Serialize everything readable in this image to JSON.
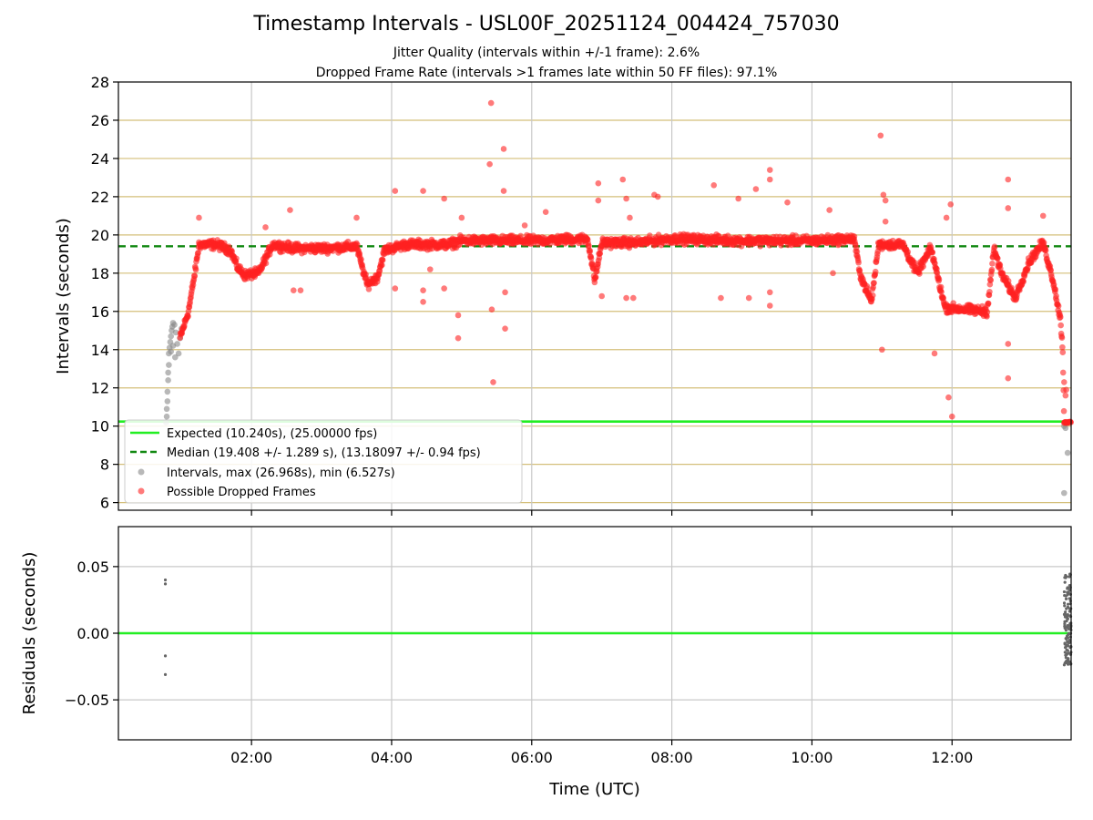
{
  "chart_data": [
    {
      "type": "scatter",
      "title": "Timestamp Intervals - USL00F_20251124_004424_757030",
      "subtitle": [
        "Jitter Quality (intervals within +/-1 frame): 2.6%",
        "Dropped Frame Rate (intervals >1 frames late within 50 FF files): 97.1%"
      ],
      "ylabel": "Intervals (seconds)",
      "xlabel": "",
      "xlim": [
        0.1,
        13.7
      ],
      "ylim": [
        5.6,
        28
      ],
      "yticks": [
        6,
        8,
        10,
        12,
        14,
        16,
        18,
        20,
        22,
        24,
        26,
        28
      ],
      "xticks": [
        2,
        4,
        6,
        8,
        10,
        12
      ],
      "horizontal_grid_color": "#d4bf7a",
      "vertical_grid_color": "#c8c8c8",
      "legend": {
        "location": "lower-left",
        "entries": [
          {
            "label": "Expected (10.240s), (25.00000 fps)",
            "kind": "line",
            "color": "#22ee22"
          },
          {
            "label": "Median (19.408 +/- 1.289 s), (13.18097 +/- 0.94 fps)",
            "kind": "dashed",
            "color": "#118811"
          },
          {
            "label": "Intervals, max (26.968s), min (6.527s)",
            "kind": "marker",
            "color": "#888888"
          },
          {
            "label": "Possible Dropped Frames",
            "kind": "marker",
            "color": "#ff2222"
          }
        ]
      },
      "expected_line": {
        "y": 10.24,
        "color": "#22ee22"
      },
      "median_line": {
        "y": 19.408,
        "color": "#118811"
      },
      "series": [
        {
          "name": "Intervals, max (26.968s), min (6.527s)",
          "color": "#888888",
          "points": [
            [
              0.78,
              10.2
            ],
            [
              0.79,
              10.5
            ],
            [
              0.79,
              10.9
            ],
            [
              0.8,
              11.3
            ],
            [
              0.8,
              11.8
            ],
            [
              0.81,
              12.4
            ],
            [
              0.81,
              12.8
            ],
            [
              0.82,
              13.2
            ],
            [
              0.82,
              13.8
            ],
            [
              0.83,
              14.1
            ],
            [
              0.84,
              14.4
            ],
            [
              0.85,
              14.7
            ],
            [
              0.86,
              15.0
            ],
            [
              0.87,
              15.2
            ],
            [
              0.88,
              15.4
            ],
            [
              0.9,
              15.3
            ],
            [
              0.92,
              14.9
            ],
            [
              0.94,
              14.3
            ],
            [
              0.96,
              13.8
            ],
            [
              0.98,
              14.6
            ],
            [
              1.0,
              15.1
            ],
            [
              0.85,
              13.9
            ],
            [
              0.88,
              14.2
            ],
            [
              0.91,
              13.6
            ],
            [
              13.6,
              10.0
            ],
            [
              13.62,
              9.9
            ],
            [
              13.65,
              8.6
            ],
            [
              13.6,
              6.5
            ]
          ]
        },
        {
          "name": "Possible Dropped Frames",
          "color": "#ff2222",
          "anchors": [
            [
              0.98,
              14.6
            ],
            [
              1.1,
              16.0
            ],
            [
              1.2,
              18.2
            ],
            [
              1.25,
              19.5
            ],
            [
              1.5,
              19.5
            ],
            [
              1.7,
              19.2
            ],
            [
              1.8,
              18.3
            ],
            [
              1.9,
              17.9
            ],
            [
              2.1,
              18.0
            ],
            [
              2.3,
              19.5
            ],
            [
              2.6,
              19.3
            ],
            [
              3.0,
              19.3
            ],
            [
              3.5,
              19.4
            ],
            [
              3.65,
              17.4
            ],
            [
              3.8,
              17.8
            ],
            [
              3.9,
              19.2
            ],
            [
              4.2,
              19.5
            ],
            [
              4.8,
              19.5
            ],
            [
              5.0,
              19.7
            ],
            [
              5.6,
              19.7
            ],
            [
              6.0,
              19.7
            ],
            [
              6.8,
              19.8
            ],
            [
              6.9,
              17.6
            ],
            [
              7.0,
              19.6
            ],
            [
              7.5,
              19.6
            ],
            [
              8.0,
              19.8
            ],
            [
              9.0,
              19.7
            ],
            [
              10.0,
              19.7
            ],
            [
              10.6,
              19.8
            ],
            [
              10.7,
              17.8
            ],
            [
              10.85,
              16.5
            ],
            [
              10.95,
              19.5
            ],
            [
              11.3,
              19.5
            ],
            [
              11.5,
              18.0
            ],
            [
              11.7,
              19.3
            ],
            [
              11.9,
              16.2
            ],
            [
              12.5,
              16.0
            ],
            [
              12.6,
              19.3
            ],
            [
              12.7,
              18.0
            ],
            [
              12.9,
              16.7
            ],
            [
              13.1,
              18.6
            ],
            [
              13.3,
              19.6
            ],
            [
              13.45,
              17.5
            ],
            [
              13.55,
              15.5
            ],
            [
              13.58,
              14.0
            ],
            [
              13.6,
              10.2
            ],
            [
              13.7,
              10.2
            ]
          ],
          "outliers": [
            [
              1.25,
              20.9
            ],
            [
              2.2,
              20.4
            ],
            [
              2.55,
              21.3
            ],
            [
              2.6,
              17.1
            ],
            [
              2.7,
              17.1
            ],
            [
              3.5,
              20.9
            ],
            [
              4.05,
              22.3
            ],
            [
              4.05,
              17.2
            ],
            [
              4.45,
              22.3
            ],
            [
              4.45,
              17.1
            ],
            [
              4.45,
              16.5
            ],
            [
              4.55,
              18.2
            ],
            [
              4.75,
              21.9
            ],
            [
              4.75,
              17.2
            ],
            [
              4.95,
              15.8
            ],
            [
              4.95,
              14.6
            ],
            [
              5.0,
              20.9
            ],
            [
              5.42,
              26.9
            ],
            [
              5.4,
              23.7
            ],
            [
              5.43,
              16.1
            ],
            [
              5.45,
              12.3
            ],
            [
              5.6,
              24.5
            ],
            [
              5.6,
              22.3
            ],
            [
              5.62,
              17.0
            ],
            [
              5.62,
              15.1
            ],
            [
              5.9,
              20.5
            ],
            [
              6.2,
              21.2
            ],
            [
              6.5,
              20.0
            ],
            [
              6.95,
              22.7
            ],
            [
              6.95,
              21.8
            ],
            [
              7.0,
              16.8
            ],
            [
              7.3,
              22.9
            ],
            [
              7.35,
              21.9
            ],
            [
              7.4,
              20.9
            ],
            [
              7.35,
              16.7
            ],
            [
              7.45,
              16.7
            ],
            [
              7.75,
              22.1
            ],
            [
              7.8,
              22.0
            ],
            [
              8.6,
              22.6
            ],
            [
              8.7,
              16.7
            ],
            [
              8.95,
              21.9
            ],
            [
              9.2,
              22.4
            ],
            [
              9.1,
              16.7
            ],
            [
              9.4,
              23.4
            ],
            [
              9.4,
              22.9
            ],
            [
              9.4,
              17.0
            ],
            [
              9.4,
              16.3
            ],
            [
              9.65,
              21.7
            ],
            [
              10.25,
              21.3
            ],
            [
              10.3,
              18.0
            ],
            [
              10.98,
              25.2
            ],
            [
              11.02,
              22.1
            ],
            [
              11.05,
              21.8
            ],
            [
              11.0,
              14.0
            ],
            [
              11.05,
              20.7
            ],
            [
              11.75,
              13.8
            ],
            [
              11.92,
              20.9
            ],
            [
              11.98,
              21.6
            ],
            [
              11.95,
              11.5
            ],
            [
              12.0,
              10.5
            ],
            [
              12.8,
              22.9
            ],
            [
              12.8,
              21.4
            ],
            [
              12.8,
              14.3
            ],
            [
              12.8,
              12.5
            ],
            [
              13.3,
              21.0
            ],
            [
              13.6,
              12.3
            ],
            [
              13.63,
              11.9
            ],
            [
              13.62,
              11.6
            ]
          ]
        }
      ]
    },
    {
      "type": "scatter",
      "title": "",
      "xlabel": "Time (UTC)",
      "ylabel": "Residuals (seconds)",
      "xlim": [
        0.1,
        13.7
      ],
      "ylim": [
        -0.08,
        0.08
      ],
      "yticks": [
        -0.05,
        0.0,
        0.05
      ],
      "ytick_labels": [
        "−0.05",
        "0.00",
        "0.05"
      ],
      "xticks": [
        2,
        4,
        6,
        8,
        10,
        12
      ],
      "xtick_labels": [
        "02:00",
        "04:00",
        "06:00",
        "08:00",
        "10:00",
        "12:00"
      ],
      "zero_line": {
        "y": 0,
        "color": "#22ee22"
      },
      "series": [
        {
          "name": "Residuals",
          "color": "#666666",
          "points": [
            [
              0.77,
              0.04
            ],
            [
              0.77,
              0.037
            ],
            [
              0.77,
              -0.017
            ],
            [
              0.77,
              -0.031
            ]
          ],
          "cluster": {
            "x_from": 13.6,
            "x_to": 13.7,
            "y_min": -0.025,
            "y_max": 0.045
          }
        }
      ]
    }
  ]
}
